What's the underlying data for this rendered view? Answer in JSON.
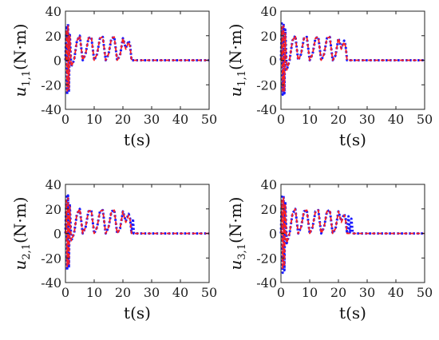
{
  "colors": {
    "series_blue": "#1a1aff",
    "series_red": "#ff2020",
    "axis": "#222222"
  },
  "chart_data": [
    {
      "type": "line",
      "ylabel": {
        "var": "u",
        "sub": "1,1",
        "unit": "(N·m)"
      },
      "xlabel": "t(s)",
      "xlim": [
        0,
        50
      ],
      "ylim": [
        -40,
        40
      ],
      "xticks": [
        "0",
        "10",
        "20",
        "30",
        "40",
        "50"
      ],
      "yticks": [
        "-40",
        "-20",
        "0",
        "20",
        "40"
      ],
      "series": [
        {
          "style": "dotted-blue",
          "x": [
            0,
            0.3,
            0.6,
            0.9,
            1.2,
            1.5,
            2,
            3,
            4,
            5,
            6,
            7,
            8,
            9,
            10,
            11,
            12,
            13,
            14,
            15,
            16,
            17,
            18,
            19,
            20,
            21,
            22,
            22.5,
            23,
            23.2,
            50
          ],
          "y": [
            0,
            28,
            -28,
            30,
            -26,
            22,
            -5,
            0,
            16,
            20,
            0,
            5,
            18,
            19,
            0,
            5,
            18,
            19,
            0,
            5,
            18,
            19,
            0,
            4,
            18,
            10,
            16,
            12,
            0,
            0,
            0
          ]
        },
        {
          "style": "dashed-red",
          "x": [
            0,
            0.3,
            0.6,
            0.9,
            1.2,
            1.5,
            2,
            3,
            4,
            5,
            6,
            7,
            8,
            9,
            10,
            11,
            12,
            13,
            14,
            15,
            16,
            17,
            18,
            19,
            20,
            21,
            22,
            22.5,
            23,
            23.2,
            50
          ],
          "y": [
            0,
            25,
            -25,
            28,
            -24,
            20,
            -5,
            0,
            16,
            20,
            0,
            5,
            18,
            19,
            0,
            5,
            18,
            19,
            0,
            5,
            18,
            19,
            0,
            4,
            18,
            9,
            15,
            11,
            0,
            0,
            0
          ]
        }
      ]
    },
    {
      "type": "line",
      "ylabel": {
        "var": "u",
        "sub": "1,1",
        "unit": "(N·m)"
      },
      "xlabel": "t(s)",
      "xlim": [
        0,
        50
      ],
      "ylim": [
        -40,
        40
      ],
      "xticks": [
        "0",
        "10",
        "20",
        "30",
        "40",
        "50"
      ],
      "yticks": [
        "-40",
        "-20",
        "0",
        "20",
        "40"
      ],
      "series": [
        {
          "style": "dotted-blue",
          "x": [
            0,
            0.3,
            0.6,
            0.9,
            1.2,
            1.5,
            2,
            3,
            4,
            5,
            6,
            7,
            8,
            9,
            10,
            11,
            12,
            13,
            14,
            15,
            16,
            17,
            18,
            19,
            20,
            21,
            22,
            22.5,
            23,
            23.3,
            50
          ],
          "y": [
            0,
            30,
            -28,
            30,
            -27,
            25,
            -8,
            0,
            16,
            20,
            0,
            5,
            18,
            19,
            0,
            5,
            18,
            19,
            0,
            5,
            18,
            19,
            0,
            4,
            18,
            10,
            16,
            12,
            0,
            0,
            0
          ]
        },
        {
          "style": "dashed-red",
          "x": [
            0,
            0.3,
            0.6,
            0.9,
            1.2,
            1.5,
            2,
            3,
            4,
            5,
            6,
            7,
            8,
            9,
            10,
            11,
            12,
            13,
            14,
            15,
            16,
            17,
            18,
            19,
            20,
            21,
            22,
            22.5,
            23,
            23.3,
            50
          ],
          "y": [
            0,
            27,
            -25,
            28,
            -25,
            22,
            -8,
            0,
            16,
            20,
            0,
            5,
            18,
            19,
            0,
            5,
            18,
            19,
            0,
            5,
            18,
            19,
            0,
            4,
            18,
            9,
            15,
            11,
            0,
            0,
            0
          ]
        }
      ]
    },
    {
      "type": "line",
      "ylabel": {
        "var": "u",
        "sub": "2,1",
        "unit": "(N·m)"
      },
      "xlabel": "t(s)",
      "xlim": [
        0,
        50
      ],
      "ylim": [
        -40,
        40
      ],
      "xticks": [
        "0",
        "10",
        "20",
        "30",
        "40",
        "50"
      ],
      "yticks": [
        "-40",
        "-20",
        "0",
        "20",
        "40"
      ],
      "series": [
        {
          "style": "dotted-blue",
          "x": [
            0,
            0.3,
            0.6,
            0.9,
            1.2,
            1.5,
            2,
            3,
            4,
            5,
            6,
            7,
            8,
            9,
            10,
            11,
            12,
            13,
            14,
            15,
            16,
            17,
            18,
            19,
            20,
            21,
            22,
            22.5,
            23,
            23.5,
            23.8,
            50
          ],
          "y": [
            0,
            30,
            -30,
            31,
            -28,
            24,
            -6,
            0,
            16,
            20,
            0,
            5,
            18,
            19,
            0,
            5,
            18,
            19,
            0,
            5,
            18,
            19,
            0,
            4,
            18,
            10,
            16,
            12,
            0,
            12,
            0,
            0
          ]
        },
        {
          "style": "dashed-red",
          "x": [
            0,
            0.3,
            0.6,
            0.9,
            1.2,
            1.5,
            2,
            3,
            4,
            5,
            6,
            7,
            8,
            9,
            10,
            11,
            12,
            13,
            14,
            15,
            16,
            17,
            18,
            19,
            20,
            21,
            22,
            22.5,
            23,
            23.5,
            23.8,
            50
          ],
          "y": [
            0,
            27,
            -27,
            29,
            -26,
            22,
            -6,
            0,
            16,
            20,
            0,
            5,
            18,
            19,
            0,
            5,
            18,
            19,
            0,
            5,
            18,
            19,
            0,
            4,
            18,
            9,
            15,
            11,
            0,
            0,
            0,
            0
          ]
        }
      ]
    },
    {
      "type": "line",
      "ylabel": {
        "var": "u",
        "sub": "3,1",
        "unit": "(N·m)"
      },
      "xlabel": "t(s)",
      "xlim": [
        0,
        50
      ],
      "ylim": [
        -40,
        40
      ],
      "xticks": [
        "0",
        "10",
        "20",
        "30",
        "40",
        "50"
      ],
      "yticks": [
        "-40",
        "-20",
        "0",
        "20",
        "40"
      ],
      "series": [
        {
          "style": "dotted-blue",
          "x": [
            0,
            0.3,
            0.6,
            0.9,
            1.2,
            1.5,
            2,
            3,
            4,
            5,
            6,
            7,
            8,
            9,
            10,
            11,
            12,
            13,
            14,
            15,
            16,
            17,
            18,
            19,
            20,
            21,
            22,
            22.5,
            23,
            23.5,
            24,
            24.5,
            25,
            25.2,
            50
          ],
          "y": [
            0,
            30,
            -32,
            31,
            -30,
            26,
            -8,
            0,
            16,
            20,
            0,
            5,
            18,
            19,
            0,
            5,
            18,
            19,
            0,
            5,
            18,
            19,
            0,
            4,
            18,
            10,
            16,
            12,
            0,
            14,
            0,
            12,
            0,
            0,
            0
          ]
        },
        {
          "style": "dashed-red",
          "x": [
            0,
            0.3,
            0.6,
            0.9,
            1.2,
            1.5,
            2,
            3,
            4,
            5,
            6,
            7,
            8,
            9,
            10,
            11,
            12,
            13,
            14,
            15,
            16,
            17,
            18,
            19,
            20,
            21,
            22,
            22.5,
            23,
            23.5,
            24,
            24.5,
            25,
            25.2,
            50
          ],
          "y": [
            0,
            27,
            -29,
            29,
            -27,
            24,
            -8,
            0,
            16,
            20,
            0,
            5,
            18,
            19,
            0,
            5,
            18,
            19,
            0,
            5,
            18,
            19,
            0,
            4,
            18,
            9,
            15,
            11,
            0,
            0,
            0,
            0,
            0,
            0,
            0
          ]
        }
      ]
    }
  ]
}
